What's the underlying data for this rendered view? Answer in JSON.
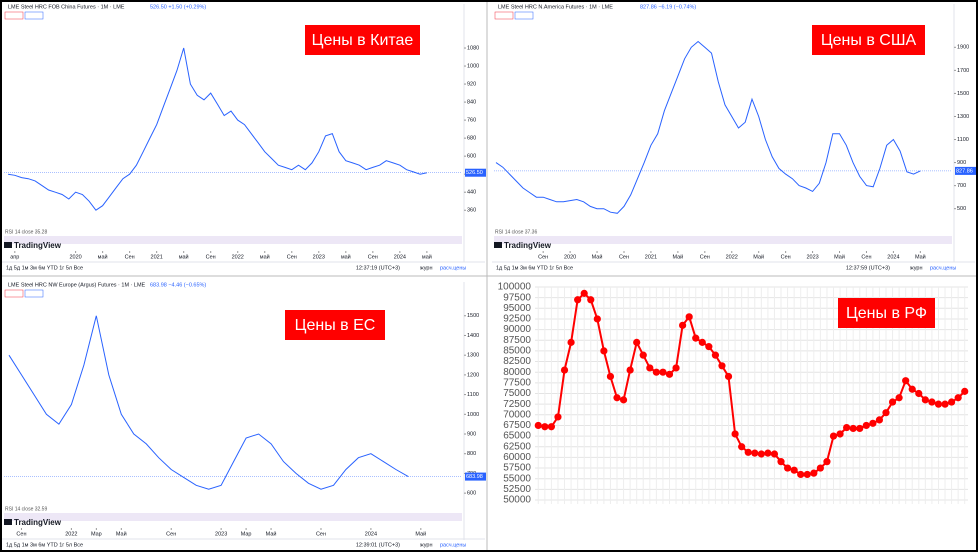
{
  "chart_data": [
    {
      "type": "line",
      "title": "LME Steel HRC FOB China Futures · 1M · LME",
      "price_line": "526.50 +1.50 (+0.29%)",
      "indicator": "RSI 14 close 35.28",
      "brand": "TradingView",
      "ranges": "1д 5д 1м 3м 6м YTD 1г 5л Все",
      "time": "12:37:19 (UTC+3)",
      "log_label": "журн",
      "auto_label": "расч.цены",
      "annotation": "Цены в Китае",
      "x": [
        2,
        3,
        4,
        5,
        6,
        7,
        8,
        9,
        10,
        11,
        12,
        13,
        14,
        15,
        16,
        17,
        18,
        19,
        20,
        21,
        22,
        23,
        24,
        25,
        26,
        27,
        28,
        29,
        30,
        31,
        32,
        33,
        34,
        35,
        36,
        37,
        38,
        39,
        40,
        41,
        42,
        43,
        44,
        45,
        46,
        47,
        48,
        49,
        50,
        51,
        52,
        53,
        54,
        55,
        56,
        57,
        58,
        59,
        60,
        61,
        62,
        63,
        64
      ],
      "series": [
        {
          "color": "#2962ff",
          "values": [
            520,
            515,
            505,
            500,
            490,
            470,
            450,
            440,
            430,
            410,
            440,
            430,
            400,
            360,
            380,
            420,
            460,
            500,
            520,
            560,
            620,
            680,
            740,
            820,
            900,
            980,
            1080,
            920,
            870,
            850,
            880,
            830,
            780,
            800,
            760,
            740,
            700,
            660,
            620,
            590,
            560,
            550,
            540,
            560,
            540,
            570,
            620,
            690,
            700,
            620,
            580,
            570,
            560,
            540,
            550,
            560,
            580,
            570,
            560,
            540,
            530,
            520,
            526.5
          ]
        }
      ],
      "price_tag": {
        "value": 526.5,
        "label": "526.50"
      },
      "xlim": [
        1.4,
        69.2
      ],
      "xticks": [
        {
          "value": 3,
          "label": "апр"
        },
        {
          "value": 12,
          "label": "2020"
        },
        {
          "value": 16,
          "label": "май"
        },
        {
          "value": 20,
          "label": "Сен"
        },
        {
          "value": 24,
          "label": "2021"
        },
        {
          "value": 28,
          "label": "май"
        },
        {
          "value": 32,
          "label": "Сен"
        },
        {
          "value": 36,
          "label": "2022"
        },
        {
          "value": 40,
          "label": "май"
        },
        {
          "value": 44,
          "label": "Сен"
        },
        {
          "value": 48,
          "label": "2023"
        },
        {
          "value": 52,
          "label": "май"
        },
        {
          "value": 56,
          "label": "Сен"
        },
        {
          "value": 60,
          "label": "2024"
        },
        {
          "value": 64,
          "label": "май"
        }
      ],
      "ylim": [
        290,
        1160
      ],
      "yticks": [
        360,
        440,
        520,
        600,
        680,
        760,
        840,
        920,
        1000,
        1080
      ],
      "grid": false
    },
    {
      "type": "line",
      "title": "LME Steel HRC N.America Futures · 1M · LME",
      "price_line": "827.86 −6.19 (−0.74%)",
      "indicator": "RSI 14 close 37.36",
      "brand": "TradingView",
      "ranges": "1д 5д 1м 3м 6м YTD 1г 5л Все",
      "time": "12:37:59 (UTC+3)",
      "log_label": "журн",
      "auto_label": "расч.цены",
      "annotation": "Цены в США",
      "x": [
        1,
        2,
        3,
        4,
        5,
        6,
        7,
        8,
        9,
        10,
        11,
        12,
        13,
        14,
        15,
        16,
        17,
        18,
        19,
        20,
        21,
        22,
        23,
        24,
        25,
        26,
        27,
        28,
        29,
        30,
        31,
        32,
        33,
        34,
        35,
        36,
        37,
        38,
        39,
        40,
        41,
        42,
        43,
        44,
        45,
        46,
        47,
        48,
        49,
        50,
        51,
        52,
        53,
        54,
        55,
        56,
        57,
        58,
        59,
        60,
        61,
        62,
        63,
        64
      ],
      "series": [
        {
          "color": "#2962ff",
          "values": [
            900,
            860,
            800,
            740,
            680,
            640,
            600,
            600,
            580,
            560,
            560,
            570,
            580,
            560,
            520,
            500,
            500,
            470,
            460,
            520,
            620,
            760,
            900,
            1050,
            1150,
            1350,
            1500,
            1650,
            1800,
            1900,
            1950,
            1900,
            1850,
            1600,
            1400,
            1300,
            1200,
            1250,
            1450,
            1300,
            1100,
            950,
            850,
            800,
            760,
            700,
            680,
            650,
            720,
            900,
            1150,
            1150,
            1050,
            900,
            780,
            700,
            690,
            850,
            1050,
            1100,
            1000,
            820,
            800,
            827.86
          ]
        }
      ],
      "price_tag": {
        "value": 827.86,
        "label": "827.86"
      },
      "xlim": [
        0.7,
        68.7
      ],
      "xticks": [
        {
          "value": 8,
          "label": "Сен"
        },
        {
          "value": 12,
          "label": "2020"
        },
        {
          "value": 16,
          "label": "Май"
        },
        {
          "value": 20,
          "label": "Сен"
        },
        {
          "value": 24,
          "label": "2021"
        },
        {
          "value": 28,
          "label": "Май"
        },
        {
          "value": 32,
          "label": "Сен"
        },
        {
          "value": 36,
          "label": "2022"
        },
        {
          "value": 40,
          "label": "Май"
        },
        {
          "value": 44,
          "label": "Сен"
        },
        {
          "value": 48,
          "label": "2023"
        },
        {
          "value": 52,
          "label": "Май"
        },
        {
          "value": 56,
          "label": "Сен"
        },
        {
          "value": 60,
          "label": "2024"
        },
        {
          "value": 64,
          "label": "Май"
        }
      ],
      "ylim": [
        350,
        2050
      ],
      "yticks": [
        500,
        700,
        900,
        1100,
        1300,
        1500,
        1700,
        1900
      ],
      "grid": false
    },
    {
      "type": "line",
      "title": "LME Steel HRC NW Europe (Argus) Futures · 1M · LME",
      "price_line": "683.98 −4.46 (−0.65%)",
      "indicator": "RSI 14 close 32.59",
      "brand": "TradingView",
      "ranges": "1д 5д 1м 3м 6м YTD 1г 5л Все",
      "time": "12:39:01 (UTC+3)",
      "log_label": "журн",
      "auto_label": "расч.цены",
      "annotation": "Цены в ЕС",
      "x": [
        31,
        32,
        33,
        34,
        35,
        36,
        37,
        38,
        39,
        40,
        41,
        42,
        43,
        44,
        45,
        46,
        47,
        48,
        49,
        50,
        51,
        52,
        53,
        54,
        55,
        56,
        57,
        58,
        59,
        60,
        61,
        62,
        63
      ],
      "series": [
        {
          "color": "#2962ff",
          "values": [
            1300,
            1200,
            1100,
            1000,
            950,
            1050,
            1250,
            1500,
            1200,
            1000,
            900,
            850,
            780,
            720,
            680,
            640,
            620,
            640,
            760,
            880,
            900,
            850,
            760,
            700,
            650,
            620,
            640,
            720,
            780,
            800,
            760,
            720,
            683.98
          ]
        }
      ],
      "price_tag": {
        "value": 683.98,
        "label": "683.98"
      },
      "xlim": [
        30.6,
        67.3
      ],
      "xticks": [
        {
          "value": 32,
          "label": "Сен"
        },
        {
          "value": 36,
          "label": "2022"
        },
        {
          "value": 38,
          "label": "Мар"
        },
        {
          "value": 40,
          "label": "Май"
        },
        {
          "value": 44,
          "label": "Сен"
        },
        {
          "value": 48,
          "label": "2023"
        },
        {
          "value": 50,
          "label": "Мар"
        },
        {
          "value": 52,
          "label": "Май"
        },
        {
          "value": 56,
          "label": "Сен"
        },
        {
          "value": 60,
          "label": "2024"
        },
        {
          "value": 64,
          "label": "Май"
        }
      ],
      "ylim": [
        550,
        1580
      ],
      "yticks": [
        600,
        700,
        800,
        900,
        1000,
        1100,
        1200,
        1300,
        1400,
        1500
      ],
      "grid": false
    },
    {
      "type": "line",
      "annotation": "Цены в РФ",
      "categories": [
        null,
        null,
        null,
        null,
        null,
        null,
        null,
        null,
        null,
        null,
        null,
        null,
        null,
        null,
        null,
        null,
        null,
        null,
        null,
        null,
        null,
        null,
        null,
        null,
        null,
        null,
        null,
        null,
        null,
        null,
        null,
        null,
        null,
        null,
        null,
        null,
        null,
        null,
        null,
        null,
        null,
        null,
        null,
        null,
        null,
        null,
        null,
        null,
        null,
        null,
        null,
        null,
        null,
        null,
        null,
        null,
        null,
        null,
        null,
        null,
        null,
        null,
        null,
        null,
        null,
        null
      ],
      "series": [
        {
          "color": "#ff0000",
          "values": [
            67500,
            67200,
            67200,
            69500,
            80500,
            87000,
            97000,
            98500,
            97000,
            92500,
            85000,
            79000,
            74000,
            73500,
            80500,
            87000,
            84000,
            81000,
            80000,
            80000,
            79500,
            81000,
            91000,
            93000,
            88000,
            87000,
            86000,
            84000,
            81500,
            79000,
            65500,
            62500,
            61200,
            61000,
            60800,
            61000,
            60800,
            59000,
            57500,
            57000,
            56000,
            56000,
            56300,
            57500,
            59000,
            65000,
            65500,
            67000,
            66800,
            66800,
            67500,
            68000,
            68800,
            70500,
            73000,
            74000,
            78000,
            76000,
            75000,
            73500,
            73000,
            72500,
            72500,
            73000,
            74000,
            75500
          ]
        }
      ],
      "ylim": [
        50000,
        100000
      ],
      "yticks": [
        50000,
        52500,
        55000,
        57500,
        60000,
        62500,
        65000,
        67500,
        70000,
        72500,
        75000,
        77500,
        80000,
        82500,
        85000,
        87500,
        90000,
        92500,
        95000,
        97500,
        100000
      ],
      "grid": true
    }
  ]
}
